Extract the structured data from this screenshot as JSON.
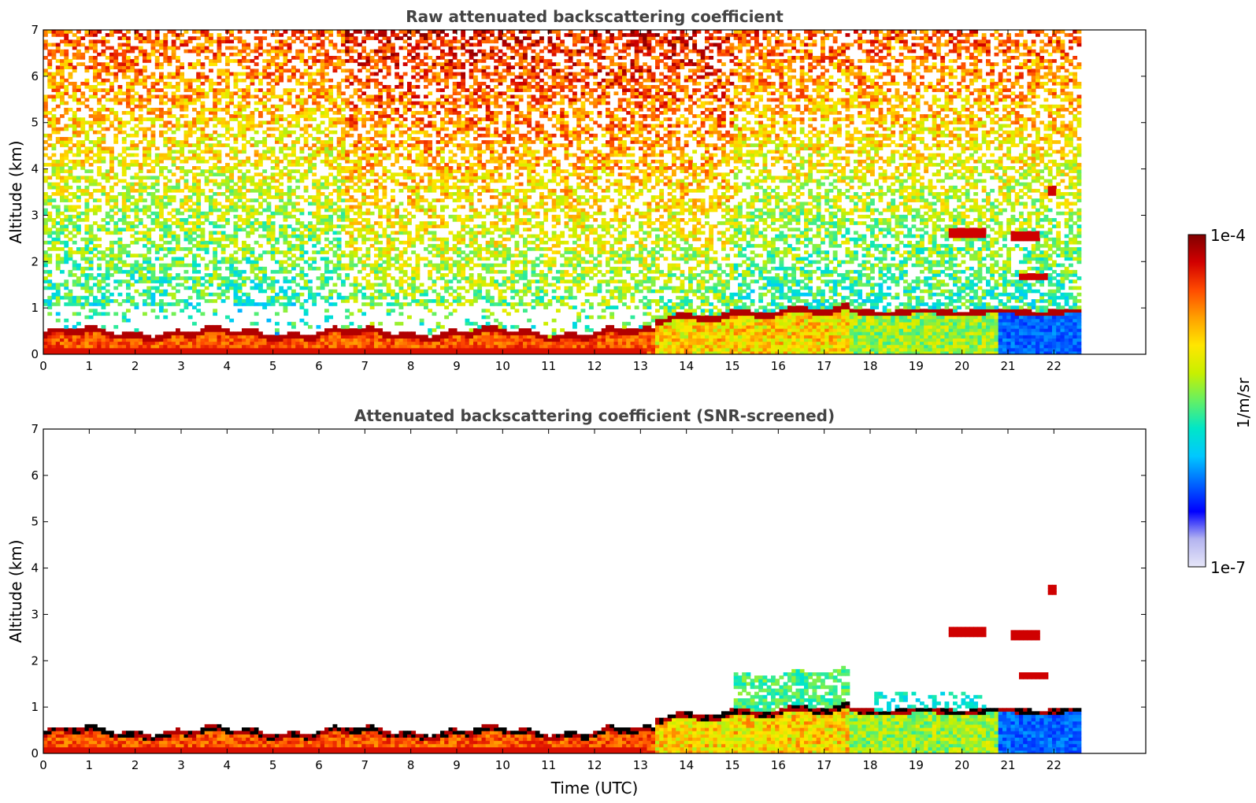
{
  "chart_data": [
    {
      "type": "heatmap",
      "title": "Raw attenuated backscattering coefficient",
      "xlabel": "",
      "ylabel": "Altitude (km)",
      "xlim": [
        0,
        24
      ],
      "ylim": [
        0,
        7
      ],
      "x_ticks": [
        "0",
        "1",
        "2",
        "3",
        "4",
        "5",
        "6",
        "7",
        "8",
        "9",
        "10",
        "11",
        "12",
        "13",
        "14",
        "15",
        "16",
        "17",
        "18",
        "19",
        "20",
        "21",
        "22"
      ],
      "y_ticks": [
        "0",
        "1",
        "2",
        "3",
        "4",
        "5",
        "6",
        "7"
      ],
      "data_time_range": [
        0,
        22.5
      ],
      "grid": false,
      "layers": [
        {
          "feature": "boundary layer",
          "time_start": 0,
          "time_end": 13.3,
          "altitude_top_km": 0.45
        },
        {
          "feature": "boundary layer",
          "time_start": 13.3,
          "time_end": 17.5,
          "altitude_top_km": 0.9
        },
        {
          "feature": "boundary layer",
          "time_start": 17.5,
          "time_end": 22.5,
          "altitude_top_km": 0.85
        },
        {
          "feature": "elevated layer",
          "time_start": 19.7,
          "time_end": 20.5,
          "altitude_km": 2.6
        },
        {
          "feature": "elevated layer",
          "time_start": 21.0,
          "time_end": 21.6,
          "altitude_km": 2.5
        },
        {
          "feature": "elevated layer",
          "time_start": 21.2,
          "time_end": 21.8,
          "altitude_km": 1.65
        },
        {
          "feature": "elevated layer",
          "time_start": 21.8,
          "time_end": 22.0,
          "altitude_km": 3.5
        }
      ]
    },
    {
      "type": "heatmap",
      "title": "Attenuated backscattering coefficient (SNR-screened)",
      "xlabel": "Time (UTC)",
      "ylabel": "Altitude (km)",
      "xlim": [
        0,
        24
      ],
      "ylim": [
        0,
        7
      ],
      "x_ticks": [
        "0",
        "1",
        "2",
        "3",
        "4",
        "5",
        "6",
        "7",
        "8",
        "9",
        "10",
        "11",
        "12",
        "13",
        "14",
        "15",
        "16",
        "17",
        "18",
        "19",
        "20",
        "21",
        "22"
      ],
      "y_ticks": [
        "0",
        "1",
        "2",
        "3",
        "4",
        "5",
        "6",
        "7"
      ],
      "data_time_range": [
        0,
        22.5
      ],
      "grid": false,
      "layers": [
        {
          "feature": "boundary layer",
          "time_start": 0,
          "time_end": 13.3,
          "altitude_top_km": 0.45
        },
        {
          "feature": "boundary layer",
          "time_start": 13.3,
          "time_end": 17.5,
          "altitude_top_km": 0.9
        },
        {
          "feature": "boundary layer",
          "time_start": 17.5,
          "time_end": 22.5,
          "altitude_top_km": 0.85
        },
        {
          "feature": "elevated layer",
          "time_start": 19.7,
          "time_end": 20.5,
          "altitude_km": 2.6
        },
        {
          "feature": "elevated layer",
          "time_start": 21.0,
          "time_end": 21.6,
          "altitude_km": 2.5
        },
        {
          "feature": "elevated layer",
          "time_start": 21.2,
          "time_end": 21.8,
          "altitude_km": 1.65
        },
        {
          "feature": "elevated layer",
          "time_start": 21.8,
          "time_end": 22.0,
          "altitude_km": 3.5
        }
      ]
    }
  ],
  "colorbar": {
    "label": "1/m/sr",
    "max_label": "1e-4",
    "min_label": "1e-7",
    "scale": "log",
    "colors": [
      "#e6e6f8",
      "#b4b4f0",
      "#0000ff",
      "#0064ff",
      "#00c8ff",
      "#00e6c8",
      "#64f064",
      "#c8f000",
      "#ffe600",
      "#ffa000",
      "#ff4b00",
      "#d20000",
      "#800000"
    ]
  }
}
